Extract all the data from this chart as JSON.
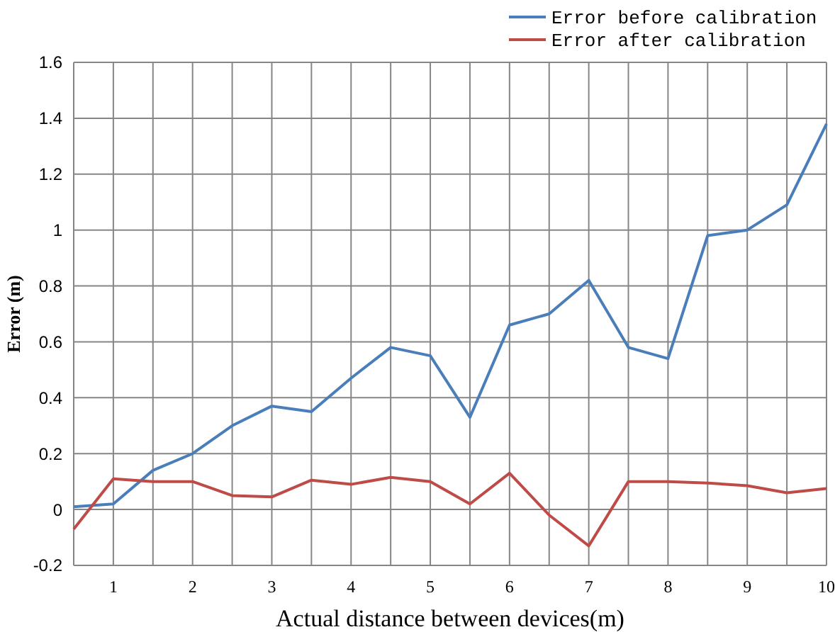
{
  "chart_data": {
    "type": "line",
    "xlabel": "Actual distance between devices(m)",
    "ylabel": "Error (m)",
    "x": [
      0.5,
      1,
      1.5,
      2,
      2.5,
      3,
      3.5,
      4,
      4.5,
      5,
      5.5,
      6,
      6.5,
      7,
      7.5,
      8,
      8.5,
      9,
      9.5,
      10
    ],
    "series": [
      {
        "name": "Error before calibration",
        "color": "#4a7ebb",
        "values": [
          0.01,
          0.02,
          0.14,
          0.2,
          0.3,
          0.37,
          0.35,
          0.47,
          0.58,
          0.55,
          0.33,
          0.66,
          0.7,
          0.82,
          0.58,
          0.54,
          0.98,
          1.0,
          1.09,
          1.38
        ]
      },
      {
        "name": "Error after calibration",
        "color": "#be4b48",
        "values": [
          -0.07,
          0.11,
          0.1,
          0.1,
          0.05,
          0.045,
          0.105,
          0.09,
          0.115,
          0.1,
          0.02,
          0.13,
          -0.02,
          -0.13,
          0.1,
          0.1,
          0.095,
          0.085,
          0.06,
          0.075
        ]
      }
    ],
    "xlim": [
      0.5,
      10
    ],
    "xticks": [
      1,
      {
        "value": 1.5,
        "label": null
      },
      2,
      {
        "value": 2.5,
        "label": null
      },
      3,
      {
        "value": 3.5,
        "label": null
      },
      4,
      {
        "value": 4.5,
        "label": null
      },
      5,
      {
        "value": 5.5,
        "label": null
      },
      6,
      {
        "value": 6.5,
        "label": null
      },
      7,
      {
        "value": 7.5,
        "label": null
      },
      8,
      {
        "value": 8.5,
        "label": null
      },
      9,
      {
        "value": 9.5,
        "label": null
      },
      10
    ],
    "ylim": [
      -0.2,
      1.6
    ],
    "yticks": [
      -0.2,
      0,
      0.2,
      0.4,
      0.6,
      0.8,
      1,
      1.2,
      1.4,
      1.6
    ],
    "grid": true,
    "legend": "top right",
    "marker": "none",
    "line_style": "solid"
  }
}
